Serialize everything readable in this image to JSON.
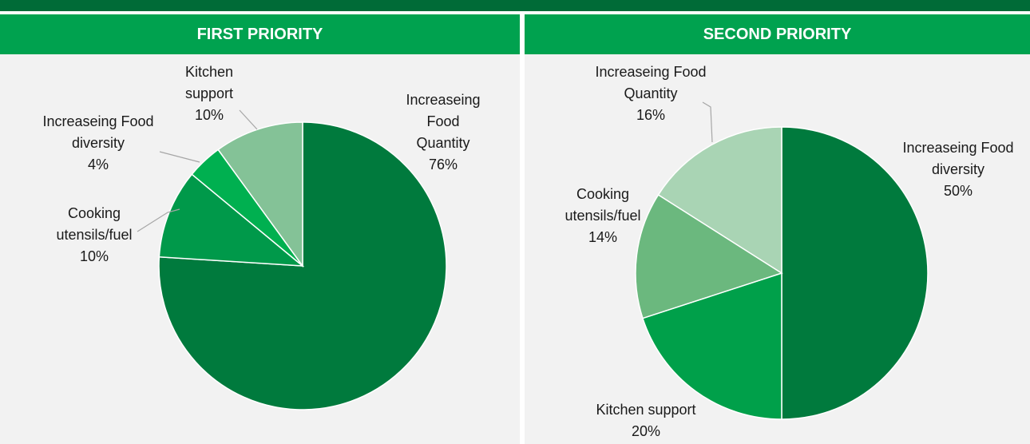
{
  "chart_data": [
    {
      "type": "pie",
      "title": "FIRST PRIORITY",
      "categories": [
        "Increaseing Food Quantity",
        "Cooking utensils/fuel",
        "Increaseing Food diversity",
        "Kitchen support"
      ],
      "values": [
        76,
        10,
        4,
        10
      ],
      "value_labels": [
        "76%",
        "10%",
        "4%",
        "10%"
      ],
      "colors": [
        "#007a3d",
        "#00994a",
        "#00b050",
        "#84c297"
      ]
    },
    {
      "type": "pie",
      "title": "SECOND PRIORITY",
      "categories": [
        "Increaseing Food diversity",
        "Kitchen support",
        "Cooking utensils/fuel",
        "Increaseing Food Quantity"
      ],
      "values": [
        50,
        20,
        14,
        16
      ],
      "value_labels": [
        "50%",
        "20%",
        "14%",
        "16%"
      ],
      "colors": [
        "#007a3d",
        "#00a04a",
        "#6bb87e",
        "#a9d4b4"
      ]
    }
  ]
}
